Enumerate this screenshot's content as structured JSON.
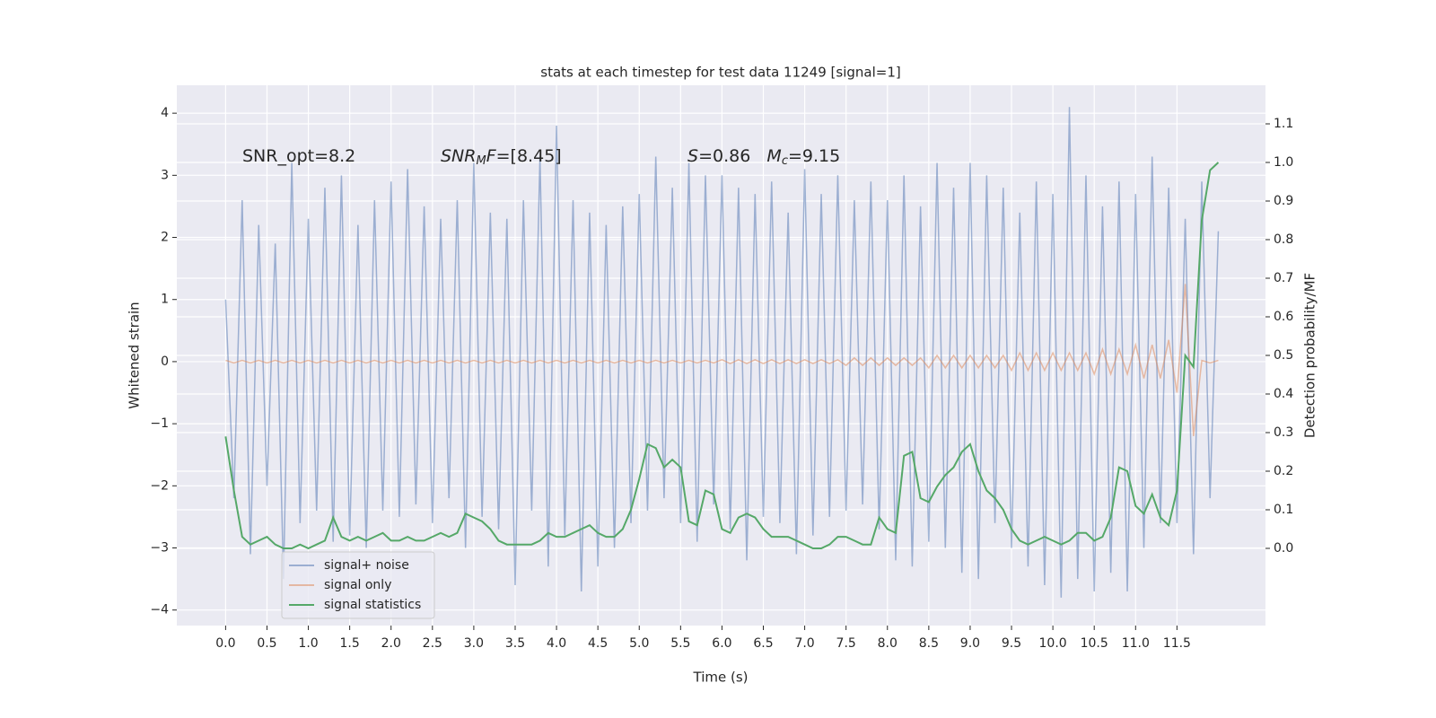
{
  "chart_data": {
    "type": "line",
    "title": "stats at each timestep for test data 11249 [signal=1]",
    "xlabel": "Time (s)",
    "ylabel": "Whitened strain",
    "y2label": "Detection probability/MF",
    "annotations": [
      {
        "parts": [
          "SNR_opt=8.2"
        ]
      },
      {
        "parts": [
          "SNR",
          "M",
          "F",
          "=[8.45]"
        ]
      },
      {
        "parts": [
          "S",
          "=0.86   ",
          "M",
          "c",
          "=9.15"
        ]
      }
    ],
    "grid": true,
    "legend": "lower left",
    "xlim": [
      -0.59,
      12.57
    ],
    "ylim": [
      -4.25,
      4.45
    ],
    "y2lim": [
      -0.2,
      1.2
    ],
    "xticks": [
      {
        "value": 0,
        "label": "0.0"
      },
      {
        "value": 0.5,
        "label": "0.5"
      },
      {
        "value": 1,
        "label": "1.0"
      },
      {
        "value": 1.5,
        "label": "1.5"
      },
      {
        "value": 2,
        "label": "2.0"
      },
      {
        "value": 2.5,
        "label": "2.5"
      },
      {
        "value": 3,
        "label": "3.0"
      },
      {
        "value": 3.5,
        "label": "3.5"
      },
      {
        "value": 4,
        "label": "4.0"
      },
      {
        "value": 4.5,
        "label": "4.5"
      },
      {
        "value": 5,
        "label": "5.0"
      },
      {
        "value": 5.5,
        "label": "5.5"
      },
      {
        "value": 6,
        "label": "6.0"
      },
      {
        "value": 6.5,
        "label": "6.5"
      },
      {
        "value": 7,
        "label": "7.0"
      },
      {
        "value": 7.5,
        "label": "7.5"
      },
      {
        "value": 8,
        "label": "8.0"
      },
      {
        "value": 8.5,
        "label": "8.5"
      },
      {
        "value": 9,
        "label": "9.0"
      },
      {
        "value": 9.5,
        "label": "9.5"
      },
      {
        "value": 10,
        "label": "10.0"
      },
      {
        "value": 10.5,
        "label": "10.5"
      },
      {
        "value": 11,
        "label": "11.0"
      },
      {
        "value": 11.5,
        "label": "11.5"
      }
    ],
    "yticks": [
      {
        "value": -4,
        "label": "−4"
      },
      {
        "value": -3,
        "label": "−3"
      },
      {
        "value": -2,
        "label": "−2"
      },
      {
        "value": -1,
        "label": "−1"
      },
      0,
      1,
      2,
      3,
      4
    ],
    "y2ticks": [
      {
        "value": 0,
        "label": "0.0"
      },
      {
        "value": 0.1,
        "label": "0.1"
      },
      {
        "value": 0.2,
        "label": "0.2"
      },
      {
        "value": 0.3,
        "label": "0.3"
      },
      {
        "value": 0.4,
        "label": "0.4"
      },
      {
        "value": 0.5,
        "label": "0.5"
      },
      {
        "value": 0.6,
        "label": "0.6"
      },
      {
        "value": 0.7,
        "label": "0.7"
      },
      {
        "value": 0.8,
        "label": "0.8"
      },
      {
        "value": 0.9,
        "label": "0.9"
      },
      {
        "value": 1,
        "label": "1.0"
      },
      {
        "value": 1.1,
        "label": "1.1"
      }
    ],
    "x": [
      0,
      0.1,
      0.2,
      0.3,
      0.4,
      0.5,
      0.6,
      0.7,
      0.8,
      0.9,
      1,
      1.1,
      1.2,
      1.3,
      1.4,
      1.5,
      1.6,
      1.7,
      1.8,
      1.9,
      2,
      2.1,
      2.2,
      2.3,
      2.4,
      2.5,
      2.6,
      2.7,
      2.8,
      2.9,
      3,
      3.1,
      3.2,
      3.3,
      3.4,
      3.5,
      3.6,
      3.7,
      3.8,
      3.9,
      4,
      4.1,
      4.2,
      4.3,
      4.4,
      4.5,
      4.6,
      4.7,
      4.8,
      4.9,
      5,
      5.1,
      5.2,
      5.3,
      5.4,
      5.5,
      5.6,
      5.7,
      5.8,
      5.9,
      6,
      6.1,
      6.2,
      6.3,
      6.4,
      6.5,
      6.6,
      6.7,
      6.8,
      6.9,
      7,
      7.1,
      7.2,
      7.3,
      7.4,
      7.5,
      7.6,
      7.7,
      7.8,
      7.9,
      8,
      8.1,
      8.2,
      8.3,
      8.4,
      8.5,
      8.6,
      8.7,
      8.8,
      8.9,
      9,
      9.1,
      9.2,
      9.3,
      9.4,
      9.5,
      9.6,
      9.7,
      9.8,
      9.9,
      10,
      10.1,
      10.2,
      10.3,
      10.4,
      10.5,
      10.6,
      10.7,
      10.8,
      10.9,
      11,
      11.1,
      11.2,
      11.3,
      11.4,
      11.5,
      11.6,
      11.7,
      11.8,
      11.9,
      12
    ],
    "series": [
      {
        "name": "signal+ noise",
        "color": "#4c72b0",
        "values": [
          1.0,
          -2.2,
          2.6,
          -3.1,
          2.2,
          -2.0,
          1.9,
          -3.5,
          3.2,
          -2.6,
          2.3,
          -2.4,
          2.8,
          -2.9,
          3.0,
          -2.8,
          2.2,
          -3.0,
          2.6,
          -2.4,
          2.9,
          -2.5,
          3.1,
          -2.3,
          2.5,
          -2.6,
          2.3,
          -2.2,
          2.6,
          -3.0,
          3.2,
          -2.5,
          2.4,
          -2.7,
          2.3,
          -3.6,
          2.6,
          -2.4,
          3.3,
          -3.3,
          3.8,
          -2.8,
          2.6,
          -3.7,
          2.4,
          -3.3,
          2.2,
          -3.0,
          2.5,
          -2.6,
          2.7,
          -2.4,
          3.3,
          -2.2,
          2.8,
          -2.6,
          3.2,
          -2.9,
          3.0,
          -2.3,
          3.0,
          -2.7,
          2.8,
          -3.2,
          2.7,
          -2.5,
          2.9,
          -2.6,
          2.4,
          -3.1,
          3.1,
          -2.8,
          2.7,
          -2.5,
          3.0,
          -2.4,
          2.6,
          -2.3,
          2.9,
          -2.7,
          2.6,
          -3.2,
          3.0,
          -3.3,
          2.5,
          -2.9,
          3.2,
          -3.0,
          2.8,
          -3.4,
          3.2,
          -3.5,
          3.0,
          -2.6,
          2.8,
          -3.0,
          2.4,
          -3.3,
          2.9,
          -3.6,
          2.7,
          -3.8,
          4.1,
          -3.5,
          3.0,
          -3.7,
          2.5,
          -3.4,
          2.9,
          -3.7,
          2.7,
          -3.0,
          3.3,
          -2.6,
          2.8,
          -2.6,
          2.3,
          -3.1,
          2.9,
          -2.2,
          2.1
        ]
      },
      {
        "name": "signal only",
        "color": "#dd8452",
        "values": [
          0.02,
          -0.02,
          0.02,
          -0.02,
          0.02,
          -0.02,
          0.02,
          -0.02,
          0.02,
          -0.02,
          0.02,
          -0.02,
          0.02,
          -0.02,
          0.02,
          -0.02,
          0.02,
          -0.02,
          0.02,
          -0.02,
          0.02,
          -0.02,
          0.02,
          -0.02,
          0.02,
          -0.02,
          0.02,
          -0.02,
          0.02,
          -0.02,
          0.02,
          -0.02,
          0.02,
          -0.02,
          0.02,
          -0.02,
          0.02,
          -0.02,
          0.02,
          -0.02,
          0.02,
          -0.02,
          0.02,
          -0.02,
          0.02,
          -0.02,
          0.02,
          -0.02,
          0.02,
          -0.02,
          0.02,
          -0.02,
          0.02,
          -0.02,
          0.02,
          -0.02,
          0.02,
          -0.02,
          0.02,
          -0.02,
          0.03,
          -0.03,
          0.03,
          -0.03,
          0.03,
          -0.03,
          0.03,
          -0.03,
          0.03,
          -0.03,
          0.03,
          -0.03,
          0.03,
          -0.03,
          0.03,
          -0.06,
          0.06,
          -0.06,
          0.06,
          -0.06,
          0.06,
          -0.06,
          0.06,
          -0.06,
          0.06,
          -0.1,
          0.1,
          -0.1,
          0.1,
          -0.1,
          0.1,
          -0.1,
          0.1,
          -0.1,
          0.1,
          -0.14,
          0.14,
          -0.14,
          0.14,
          -0.14,
          0.14,
          -0.14,
          0.14,
          -0.14,
          0.14,
          -0.2,
          0.2,
          -0.2,
          0.2,
          -0.2,
          0.27,
          -0.27,
          0.27,
          -0.27,
          0.35,
          -0.5,
          1.25,
          -1.2,
          0.02,
          -0.02,
          0.02
        ]
      },
      {
        "name": "signal statistics",
        "color": "#55a868",
        "axis": "y2",
        "values": [
          0.29,
          0.15,
          0.03,
          0.01,
          0.02,
          0.03,
          0.01,
          0,
          0,
          0.01,
          0,
          0.01,
          0.02,
          0.08,
          0.03,
          0.02,
          0.03,
          0.02,
          0.03,
          0.04,
          0.02,
          0.02,
          0.03,
          0.02,
          0.02,
          0.03,
          0.04,
          0.03,
          0.04,
          0.09,
          0.08,
          0.07,
          0.05,
          0.02,
          0.01,
          0.01,
          0.01,
          0.01,
          0.02,
          0.04,
          0.03,
          0.03,
          0.04,
          0.05,
          0.06,
          0.04,
          0.03,
          0.03,
          0.05,
          0.1,
          0.18,
          0.27,
          0.26,
          0.21,
          0.23,
          0.21,
          0.07,
          0.06,
          0.15,
          0.14,
          0.05,
          0.04,
          0.08,
          0.09,
          0.08,
          0.05,
          0.03,
          0.03,
          0.03,
          0.02,
          0.01,
          0,
          0,
          0.01,
          0.03,
          0.03,
          0.02,
          0.01,
          0.01,
          0.08,
          0.05,
          0.04,
          0.24,
          0.25,
          0.13,
          0.12,
          0.16,
          0.19,
          0.21,
          0.25,
          0.27,
          0.2,
          0.15,
          0.13,
          0.1,
          0.05,
          0.02,
          0.01,
          0.02,
          0.03,
          0.02,
          0.01,
          0.02,
          0.04,
          0.04,
          0.02,
          0.03,
          0.08,
          0.21,
          0.2,
          0.11,
          0.09,
          0.14,
          0.08,
          0.06,
          0.15,
          0.5,
          0.47,
          0.85,
          0.98,
          1.0
        ]
      }
    ]
  }
}
